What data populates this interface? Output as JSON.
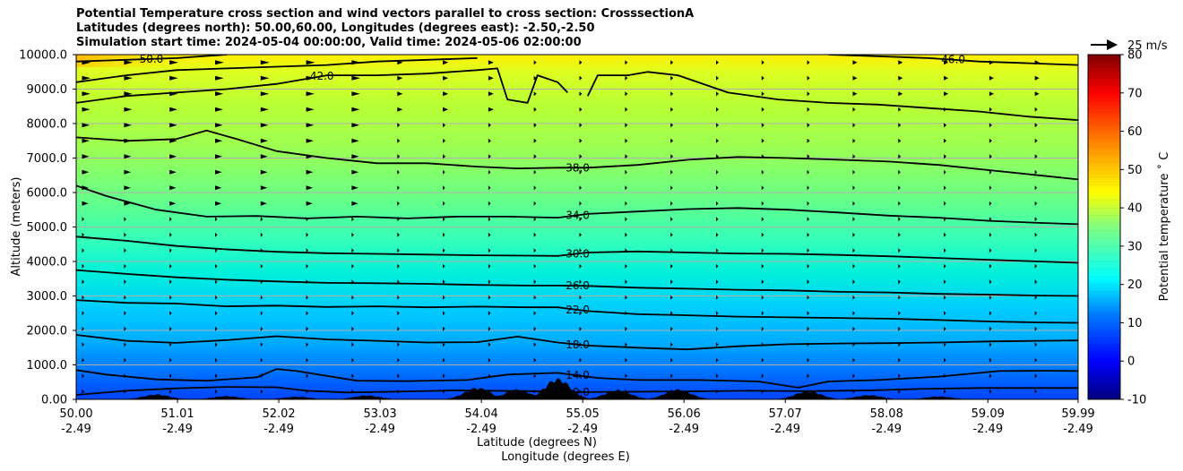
{
  "title_lines": [
    "Potential Temperature cross section and wind vectors parallel to cross section: CrosssectionA",
    "Latitudes (degrees north): 50.00,60.00, Longitudes (degrees east): -2.50,-2.50",
    "Simulation start time: 2024-05-04 00:00:00, Valid time: 2024-05-06 02:00:00"
  ],
  "chart_data": {
    "type": "heatmap",
    "xlabel_lines": [
      "Latitude (degrees N)",
      "Longitude (degrees E)"
    ],
    "ylabel": "Altitude (meters)",
    "x_tick_labels": [
      [
        "50.00",
        "-2.49"
      ],
      [
        "51.01",
        "-2.49"
      ],
      [
        "52.02",
        "-2.49"
      ],
      [
        "53.03",
        "-2.49"
      ],
      [
        "54.04",
        "-2.49"
      ],
      [
        "55.05",
        "-2.49"
      ],
      [
        "56.06",
        "-2.49"
      ],
      [
        "57.07",
        "-2.49"
      ],
      [
        "58.08",
        "-2.49"
      ],
      [
        "59.09",
        "-2.49"
      ],
      [
        "59.99",
        "-2.49"
      ]
    ],
    "x_ticks": [
      50.0,
      51.01,
      52.02,
      53.03,
      54.04,
      55.05,
      56.06,
      57.07,
      58.08,
      59.09,
      59.99
    ],
    "xlim": [
      50.0,
      59.99
    ],
    "y_ticks": [
      0,
      1000,
      2000,
      3000,
      4000,
      5000,
      6000,
      7000,
      8000,
      9000,
      10000
    ],
    "y_tick_labels": [
      "0.00",
      "1000.0",
      "2000.0",
      "3000.0",
      "4000.0",
      "5000.0",
      "6000.0",
      "7000.0",
      "8000.0",
      "9000.0",
      "10000.0"
    ],
    "ylim": [
      0,
      10000
    ],
    "grid": "horizontal",
    "colorbar": {
      "label": "Potential temperature $^\\circ$C",
      "label_display": "Potential temperature ˚ C",
      "ticks": [
        -10,
        0,
        10,
        20,
        30,
        40,
        50,
        60,
        70,
        80
      ],
      "range": [
        -10,
        80
      ],
      "colormap": "jet"
    },
    "wind_reference": {
      "label": "25 m/s",
      "value": 25
    },
    "contours": [
      {
        "level": 10.0,
        "label": "10.0",
        "points": [
          [
            50.0,
            130
          ],
          [
            50.5,
            250
          ],
          [
            51.0,
            320
          ],
          [
            51.5,
            360
          ],
          [
            52.0,
            350
          ],
          [
            52.3,
            250
          ],
          [
            52.7,
            200
          ],
          [
            53.3,
            230
          ],
          [
            53.8,
            260
          ],
          [
            54.5,
            240
          ],
          [
            55.0,
            210
          ],
          [
            55.5,
            220
          ],
          [
            56.1,
            230
          ],
          [
            56.7,
            250
          ],
          [
            57.3,
            240
          ],
          [
            57.9,
            260
          ],
          [
            58.4,
            300
          ],
          [
            59.0,
            330
          ],
          [
            59.5,
            330
          ],
          [
            59.99,
            330
          ]
        ]
      },
      {
        "level": 14.0,
        "label": "14.0",
        "points": [
          [
            50.0,
            850
          ],
          [
            50.3,
            720
          ],
          [
            50.8,
            580
          ],
          [
            51.3,
            540
          ],
          [
            51.8,
            640
          ],
          [
            52.0,
            880
          ],
          [
            52.2,
            820
          ],
          [
            52.8,
            540
          ],
          [
            53.3,
            530
          ],
          [
            53.9,
            560
          ],
          [
            54.3,
            720
          ],
          [
            54.8,
            770
          ],
          [
            55.2,
            620
          ],
          [
            55.6,
            560
          ],
          [
            56.2,
            560
          ],
          [
            56.8,
            520
          ],
          [
            57.2,
            340
          ],
          [
            57.5,
            520
          ],
          [
            58.0,
            560
          ],
          [
            58.6,
            660
          ],
          [
            59.2,
            820
          ],
          [
            59.7,
            830
          ],
          [
            59.99,
            820
          ]
        ]
      },
      {
        "level": 18.0,
        "label": "18.0",
        "points": [
          [
            50.0,
            1870
          ],
          [
            50.5,
            1700
          ],
          [
            51.0,
            1640
          ],
          [
            51.5,
            1720
          ],
          [
            52.0,
            1830
          ],
          [
            52.5,
            1740
          ],
          [
            53.0,
            1700
          ],
          [
            53.5,
            1650
          ],
          [
            54.0,
            1660
          ],
          [
            54.4,
            1820
          ],
          [
            54.8,
            1650
          ],
          [
            55.1,
            1560
          ],
          [
            55.6,
            1500
          ],
          [
            56.1,
            1450
          ],
          [
            56.6,
            1540
          ],
          [
            57.1,
            1600
          ],
          [
            57.6,
            1620
          ],
          [
            58.1,
            1630
          ],
          [
            58.6,
            1650
          ],
          [
            59.1,
            1680
          ],
          [
            59.6,
            1700
          ],
          [
            59.99,
            1710
          ]
        ]
      },
      {
        "level": 22.0,
        "label": "22.0",
        "points": [
          [
            50.0,
            2880
          ],
          [
            50.5,
            2800
          ],
          [
            51.0,
            2780
          ],
          [
            51.5,
            2700
          ],
          [
            52.0,
            2720
          ],
          [
            52.5,
            2680
          ],
          [
            53.0,
            2700
          ],
          [
            53.5,
            2670
          ],
          [
            54.0,
            2690
          ],
          [
            54.5,
            2670
          ],
          [
            54.8,
            2670
          ],
          [
            55.1,
            2560
          ],
          [
            55.6,
            2470
          ],
          [
            56.1,
            2440
          ],
          [
            56.6,
            2400
          ],
          [
            57.1,
            2380
          ],
          [
            57.6,
            2360
          ],
          [
            58.1,
            2340
          ],
          [
            58.6,
            2300
          ],
          [
            59.1,
            2260
          ],
          [
            59.6,
            2230
          ],
          [
            59.99,
            2220
          ]
        ]
      },
      {
        "level": 26.0,
        "label": "26.0",
        "points": [
          [
            50.0,
            3750
          ],
          [
            50.5,
            3640
          ],
          [
            51.0,
            3540
          ],
          [
            51.5,
            3470
          ],
          [
            52.0,
            3420
          ],
          [
            52.5,
            3380
          ],
          [
            53.0,
            3370
          ],
          [
            53.5,
            3350
          ],
          [
            54.0,
            3320
          ],
          [
            54.5,
            3300
          ],
          [
            54.8,
            3300
          ],
          [
            55.1,
            3290
          ],
          [
            55.6,
            3240
          ],
          [
            56.1,
            3210
          ],
          [
            56.6,
            3180
          ],
          [
            57.1,
            3160
          ],
          [
            57.6,
            3120
          ],
          [
            58.1,
            3100
          ],
          [
            58.6,
            3060
          ],
          [
            59.1,
            3040
          ],
          [
            59.6,
            3010
          ],
          [
            59.99,
            3000
          ]
        ]
      },
      {
        "level": 30.0,
        "label": "30.0",
        "points": [
          [
            50.0,
            4720
          ],
          [
            50.5,
            4600
          ],
          [
            51.0,
            4450
          ],
          [
            51.5,
            4350
          ],
          [
            52.0,
            4280
          ],
          [
            52.5,
            4240
          ],
          [
            53.0,
            4220
          ],
          [
            53.5,
            4200
          ],
          [
            54.0,
            4180
          ],
          [
            54.5,
            4170
          ],
          [
            54.8,
            4160
          ],
          [
            55.1,
            4260
          ],
          [
            55.6,
            4290
          ],
          [
            56.1,
            4260
          ],
          [
            56.6,
            4230
          ],
          [
            57.1,
            4220
          ],
          [
            57.6,
            4190
          ],
          [
            58.1,
            4150
          ],
          [
            58.6,
            4100
          ],
          [
            59.1,
            4050
          ],
          [
            59.6,
            4000
          ],
          [
            59.99,
            3960
          ]
        ]
      },
      {
        "level": 34.0,
        "label": "34.0",
        "points": [
          [
            50.0,
            6200
          ],
          [
            50.3,
            5900
          ],
          [
            50.8,
            5500
          ],
          [
            51.3,
            5300
          ],
          [
            51.8,
            5320
          ],
          [
            52.3,
            5250
          ],
          [
            52.8,
            5300
          ],
          [
            53.3,
            5250
          ],
          [
            53.8,
            5300
          ],
          [
            54.3,
            5300
          ],
          [
            54.8,
            5270
          ],
          [
            55.1,
            5380
          ],
          [
            55.6,
            5450
          ],
          [
            56.1,
            5520
          ],
          [
            56.6,
            5550
          ],
          [
            57.1,
            5500
          ],
          [
            57.6,
            5420
          ],
          [
            58.1,
            5330
          ],
          [
            58.6,
            5270
          ],
          [
            59.1,
            5180
          ],
          [
            59.6,
            5120
          ],
          [
            59.99,
            5080
          ]
        ]
      },
      {
        "level": 38.0,
        "label": "38.0",
        "points": [
          [
            50.0,
            7600
          ],
          [
            50.5,
            7500
          ],
          [
            51.0,
            7550
          ],
          [
            51.3,
            7800
          ],
          [
            51.6,
            7550
          ],
          [
            52.0,
            7200
          ],
          [
            52.5,
            7000
          ],
          [
            53.0,
            6850
          ],
          [
            53.5,
            6850
          ],
          [
            54.0,
            6750
          ],
          [
            54.4,
            6700
          ],
          [
            54.8,
            6720
          ],
          [
            55.1,
            6720
          ],
          [
            55.6,
            6800
          ],
          [
            56.1,
            6950
          ],
          [
            56.6,
            7030
          ],
          [
            57.1,
            7000
          ],
          [
            57.6,
            6950
          ],
          [
            58.1,
            6900
          ],
          [
            58.6,
            6800
          ],
          [
            59.1,
            6650
          ],
          [
            59.6,
            6500
          ],
          [
            59.99,
            6380
          ]
        ]
      },
      {
        "level": 42.0,
        "label": "42.0",
        "points": [
          [
            50.0,
            8600
          ],
          [
            50.5,
            8800
          ],
          [
            51.0,
            8900
          ],
          [
            51.5,
            9000
          ],
          [
            52.0,
            9150
          ],
          [
            52.5,
            9400
          ],
          [
            53.0,
            9400
          ],
          [
            53.5,
            9450
          ],
          [
            54.0,
            9550
          ],
          [
            54.2,
            9600
          ],
          [
            54.3,
            8700
          ],
          [
            54.5,
            8600
          ],
          [
            54.6,
            9400
          ],
          [
            54.8,
            9200
          ],
          [
            54.9,
            8900
          ]
        ]
      },
      {
        "level": 42.0,
        "label": "",
        "points": [
          [
            55.1,
            8800
          ],
          [
            55.2,
            9400
          ],
          [
            55.5,
            9400
          ],
          [
            55.7,
            9500
          ],
          [
            56.0,
            9400
          ],
          [
            56.5,
            8900
          ],
          [
            57.0,
            8700
          ],
          [
            57.5,
            8600
          ],
          [
            58.0,
            8550
          ],
          [
            58.5,
            8450
          ],
          [
            59.0,
            8350
          ],
          [
            59.5,
            8200
          ],
          [
            59.99,
            8100
          ]
        ]
      },
      {
        "level": 46.0,
        "label": "",
        "points": [
          [
            50.0,
            9200
          ],
          [
            50.5,
            9400
          ],
          [
            51.0,
            9550
          ],
          [
            51.5,
            9600
          ],
          [
            52.0,
            9650
          ],
          [
            52.5,
            9700
          ],
          [
            53.0,
            9800
          ],
          [
            53.5,
            9850
          ],
          [
            54.0,
            9900
          ]
        ]
      },
      {
        "level": 46.0,
        "label": "46.0",
        "points": [
          [
            57.5,
            10000
          ],
          [
            58.0,
            9950
          ],
          [
            58.5,
            9900
          ],
          [
            59.0,
            9800
          ],
          [
            59.5,
            9750
          ],
          [
            59.99,
            9700
          ]
        ]
      },
      {
        "level": 50.0,
        "label": "50.0",
        "points": [
          [
            50.0,
            9800
          ],
          [
            50.5,
            9850
          ],
          [
            51.0,
            9900
          ],
          [
            51.5,
            10000
          ]
        ]
      }
    ],
    "terrain_peaks": [
      {
        "x": 50.8,
        "height": 150
      },
      {
        "x": 51.5,
        "height": 100
      },
      {
        "x": 52.2,
        "height": 80
      },
      {
        "x": 52.9,
        "height": 120
      },
      {
        "x": 54.0,
        "height": 350
      },
      {
        "x": 54.4,
        "height": 300
      },
      {
        "x": 54.8,
        "height": 620
      },
      {
        "x": 55.4,
        "height": 280
      },
      {
        "x": 56.0,
        "height": 300
      },
      {
        "x": 57.3,
        "height": 250
      },
      {
        "x": 57.9,
        "height": 130
      },
      {
        "x": 58.6,
        "height": 90
      }
    ]
  }
}
